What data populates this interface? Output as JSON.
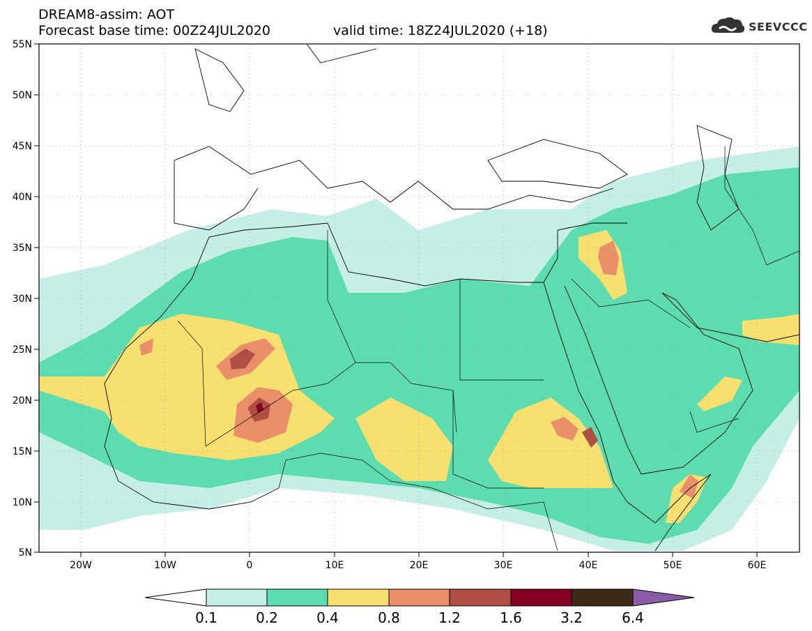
{
  "header": {
    "line1": "DREAM8-assim: AOT",
    "line2": "Forecast base time: 00Z24JUL2020",
    "valid": "valid time: 18Z24JUL2020 (+18)"
  },
  "logo": {
    "text": "SEEVCCC",
    "icon": "cloud-icon"
  },
  "map": {
    "lat_labels": [
      "55N",
      "50N",
      "45N",
      "40N",
      "35N",
      "30N",
      "25N",
      "20N",
      "15N",
      "10N",
      "5N"
    ],
    "lon_labels": [
      "20W",
      "10W",
      "0",
      "10E",
      "20E",
      "30E",
      "40E",
      "50E",
      "60E"
    ],
    "lat_range": [
      5,
      55
    ],
    "lon_range": [
      -25,
      65
    ],
    "grid": "dotted"
  },
  "colorbar": {
    "labels": [
      "0.1",
      "0.2",
      "0.4",
      "0.8",
      "1.2",
      "1.6",
      "3.2",
      "6.4"
    ],
    "colors": [
      "#ffffff",
      "#c5efe5",
      "#5ddcb0",
      "#f7e070",
      "#e9906a",
      "#b04e44",
      "#850025",
      "#3e2a19",
      "#8a5ca6"
    ]
  }
}
